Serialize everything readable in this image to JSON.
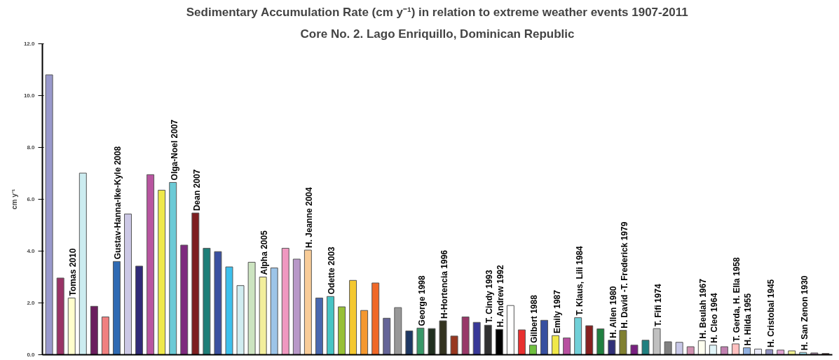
{
  "chart_data": {
    "type": "bar",
    "title": "Sedimentary Accumulation Rate (cm y⁻¹) in relation to extreme weather events 1907-2011",
    "subtitle": "Core No. 2. Lago Enriquillo, Dominican Republic",
    "ylabel": "cm y⁻¹",
    "categories": [
      null,
      null,
      null,
      null,
      null,
      null,
      null,
      null,
      null,
      null,
      null,
      null,
      null,
      null,
      null,
      null,
      null,
      null,
      null,
      null,
      null,
      null,
      null,
      null,
      null,
      null,
      null,
      null,
      null,
      null,
      null,
      null,
      null,
      null,
      null,
      null,
      null,
      null,
      null,
      null,
      null,
      null,
      null,
      null,
      null,
      null,
      null,
      null,
      null,
      null,
      null,
      null,
      null,
      null,
      null,
      null,
      null,
      null,
      null,
      null,
      null,
      null,
      null,
      null,
      null,
      null,
      null,
      null,
      null,
      null
    ],
    "values": [
      10.8,
      2.96,
      2.19,
      7.01,
      1.87,
      1.46,
      3.6,
      5.43,
      3.42,
      6.95,
      6.35,
      6.65,
      4.23,
      5.47,
      4.11,
      3.98,
      3.39,
      2.67,
      3.57,
      3.0,
      3.35,
      4.11,
      3.69,
      4.04,
      2.19,
      2.25,
      1.85,
      2.87,
      1.71,
      2.77,
      1.41,
      1.82,
      0.92,
      1.03,
      1.01,
      1.31,
      0.72,
      1.46,
      1.25,
      1.14,
      0.98,
      1.9,
      0.96,
      0.37,
      1.33,
      0.74,
      0.65,
      1.43,
      1.12,
      1.0,
      0.56,
      0.94,
      0.37,
      0.56,
      1.01,
      0.5,
      0.48,
      0.31,
      0.54,
      0.37,
      0.31,
      0.42,
      0.27,
      0.22,
      0.2,
      0.18,
      0.15,
      0.09,
      0.07,
      0.05
    ],
    "colors": [
      "#9999cc",
      "#993366",
      "#ffffcc",
      "#ccecf0",
      "#6b1e5e",
      "#f08080",
      "#2f6ab3",
      "#ccc8e6",
      "#302a78",
      "#b855a0",
      "#eee84a",
      "#6ccad6",
      "#7e2a7e",
      "#7e1e20",
      "#1e7e78",
      "#3a50a0",
      "#3cc0ec",
      "#d0ecf0",
      "#cce4c0",
      "#f2ee9c",
      "#9cc4e8",
      "#f098c0",
      "#b898c8",
      "#f8cc98",
      "#4868b0",
      "#48c4c4",
      "#98c038",
      "#f4c830",
      "#f49830",
      "#f06828",
      "#646498",
      "#989898",
      "#1e3864",
      "#389868",
      "#203020",
      "#343420",
      "#983820",
      "#983868",
      "#383898",
      "#303030",
      "#000000",
      "#ffffff",
      "#e83030",
      "#70c040",
      "#3850a0",
      "#f0e848",
      "#b850a0",
      "#70d0d8",
      "#882020",
      "#208040",
      "#303078",
      "#808030",
      "#782080",
      "#208080",
      "#c0c0c0",
      "#808080",
      "#c8c8e8",
      "#d090b0",
      "#fffff0",
      "#e0f4f8",
      "#c080b0",
      "#ffc0c0",
      "#90b0e0",
      "#e8e8f8",
      "#9090c0",
      "#e0a0d0",
      "#f0f090",
      "#a0e0f0",
      "#a080a0",
      "#604040"
    ],
    "value_labels": [
      null,
      null,
      "Tomas 2010",
      null,
      null,
      null,
      "Gustav-Hanna-Ike-Kyle 2008",
      null,
      null,
      null,
      null,
      "Olga-Noel 2007",
      null,
      "Dean 2007",
      null,
      null,
      null,
      null,
      null,
      "Alpha 2005",
      null,
      null,
      null,
      "H. Jeanne 2004",
      null,
      "Odette 2003",
      null,
      null,
      null,
      null,
      null,
      null,
      null,
      "George 1998",
      null,
      "H-Hortencia 1996",
      null,
      null,
      null,
      "T. Cindy 1993",
      "H. Andrew 1992",
      null,
      null,
      "Gilbert 1988",
      null,
      "Emily 1987",
      null,
      "T. Klaus, Lili 1984",
      null,
      null,
      "H. Allen 1980",
      "H. David -T. Frederick 1979",
      null,
      null,
      "T. Fifi 1974",
      null,
      null,
      null,
      "H. Beulah 1967",
      "H. Cleo 1964",
      null,
      "T. Gerda, H. Ella 1958",
      "H. Hilda 1955",
      null,
      "H. Cristobal 1945",
      null,
      null,
      "H. San Zenon 1930",
      null,
      null
    ],
    "ylim": [
      0,
      12
    ],
    "yticks": [
      {
        "value": 0,
        "label": "0.0"
      },
      {
        "value": 2,
        "label": "2.0"
      },
      {
        "value": 4,
        "label": "4.0"
      },
      {
        "value": 6,
        "label": "6.0"
      },
      {
        "value": 8,
        "label": "8.0"
      },
      {
        "value": 10,
        "label": "10.0"
      },
      {
        "value": 12,
        "label": "12.0"
      }
    ],
    "grid": false
  }
}
